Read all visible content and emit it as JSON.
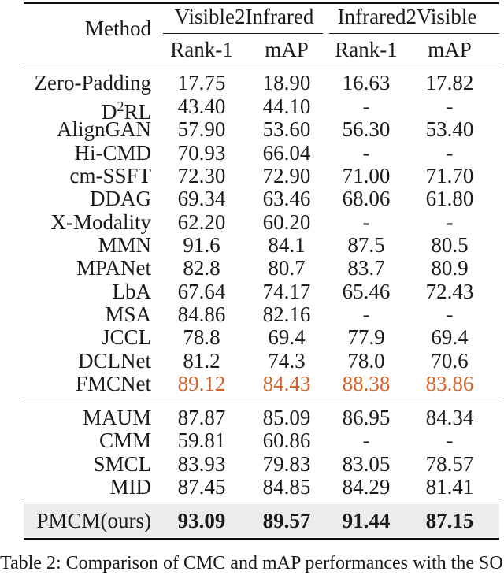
{
  "header": {
    "method": "Method",
    "group1": "Visible2Infrared",
    "group2": "Infrared2Visible",
    "rank": "Rank-1",
    "map": "mAP"
  },
  "rows": [
    {
      "method": "Zero-Padding",
      "v_rank": "17.75",
      "v_map": "18.90",
      "i_rank": "16.63",
      "i_map": "17.82"
    },
    {
      "method": "D²RL",
      "v_rank": "43.40",
      "v_map": "44.10",
      "i_rank": "-",
      "i_map": "-"
    },
    {
      "method": "AlignGAN",
      "v_rank": "57.90",
      "v_map": "53.60",
      "i_rank": "56.30",
      "i_map": "53.40"
    },
    {
      "method": "Hi-CMD",
      "v_rank": "70.93",
      "v_map": "66.04",
      "i_rank": "-",
      "i_map": "-"
    },
    {
      "method": "cm-SSFT",
      "v_rank": "72.30",
      "v_map": "72.90",
      "i_rank": "71.00",
      "i_map": "71.70"
    },
    {
      "method": "DDAG",
      "v_rank": "69.34",
      "v_map": "63.46",
      "i_rank": "68.06",
      "i_map": "61.80"
    },
    {
      "method": "X-Modality",
      "v_rank": "62.20",
      "v_map": "60.20",
      "i_rank": "-",
      "i_map": "-"
    },
    {
      "method": "MMN",
      "v_rank": "91.6",
      "v_map": "84.1",
      "i_rank": "87.5",
      "i_map": "80.5"
    },
    {
      "method": "MPANet",
      "v_rank": "82.8",
      "v_map": "80.7",
      "i_rank": "83.7",
      "i_map": "80.9"
    },
    {
      "method": "LbA",
      "v_rank": "67.64",
      "v_map": "74.17",
      "i_rank": "65.46",
      "i_map": "72.43"
    },
    {
      "method": "MSA",
      "v_rank": "84.86",
      "v_map": "82.16",
      "i_rank": "-",
      "i_map": "-"
    },
    {
      "method": "JCCL",
      "v_rank": "78.8",
      "v_map": "69.4",
      "i_rank": "77.9",
      "i_map": "69.4"
    },
    {
      "method": "DCLNet",
      "v_rank": "81.2",
      "v_map": "74.3",
      "i_rank": "78.0",
      "i_map": "70.6"
    },
    {
      "method": "FMCNet",
      "v_rank": "89.12",
      "v_map": "84.43",
      "i_rank": "88.38",
      "i_map": "83.86"
    },
    {
      "method": "MAUM",
      "v_rank": "87.87",
      "v_map": "85.09",
      "i_rank": "86.95",
      "i_map": "84.34"
    },
    {
      "method": "CMM",
      "v_rank": "59.81",
      "v_map": "60.86",
      "i_rank": "-",
      "i_map": "-"
    },
    {
      "method": "SMCL",
      "v_rank": "83.93",
      "v_map": "79.83",
      "i_rank": "83.05",
      "i_map": "78.57"
    },
    {
      "method": "MID",
      "v_rank": "87.45",
      "v_map": "84.85",
      "i_rank": "84.29",
      "i_map": "81.41"
    },
    {
      "method": "PMCM(ours)",
      "v_rank": "93.09",
      "v_map": "89.57",
      "i_rank": "91.44",
      "i_map": "87.15"
    }
  ],
  "caption": "Table 2: Comparison of CMC and mAP performances with the SO",
  "colors": {
    "highlight": "#d2642a",
    "shade": "#ececec"
  }
}
